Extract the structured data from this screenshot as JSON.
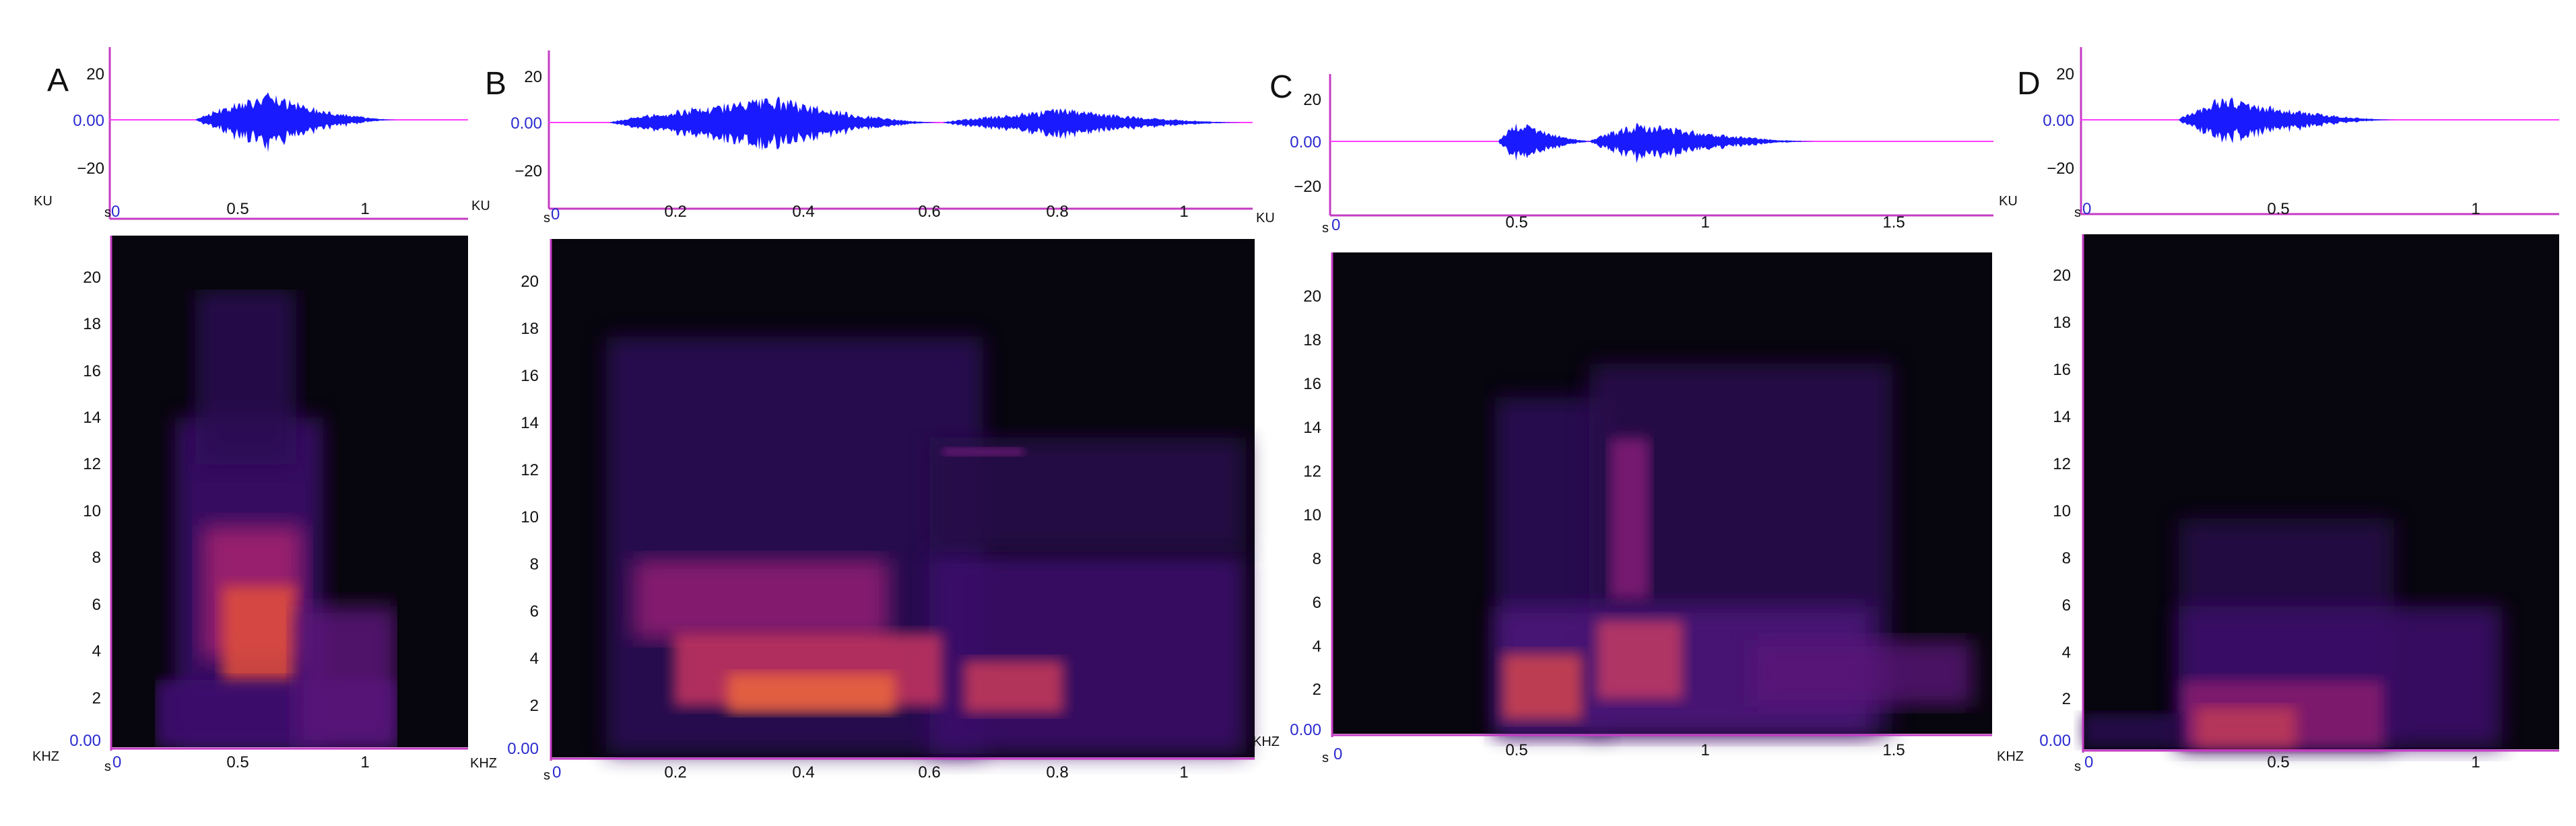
{
  "figure": {
    "panels": [
      {
        "label": "A",
        "waveform": {
          "y_unit": "KU",
          "y_ticks": [
            "20",
            "0.00",
            "−20"
          ],
          "x_unit": "s",
          "x_ticks": [
            "0",
            "0.5",
            "1"
          ]
        },
        "spectrogram": {
          "y_unit": "KHZ",
          "y_ticks": [
            "0.00",
            "2",
            "4",
            "6",
            "8",
            "10",
            "12",
            "14",
            "16",
            "18",
            "20"
          ],
          "x_unit": "s",
          "x_ticks": [
            "0",
            "0.5",
            "1"
          ]
        }
      },
      {
        "label": "B",
        "waveform": {
          "y_unit": "KU",
          "y_ticks": [
            "20",
            "0.00",
            "−20"
          ],
          "x_unit": "s",
          "x_ticks": [
            "0",
            "0.2",
            "0.4",
            "0.6",
            "0.8",
            "1"
          ]
        },
        "spectrogram": {
          "y_unit": "KHZ",
          "y_ticks": [
            "0.00",
            "2",
            "4",
            "6",
            "8",
            "10",
            "12",
            "14",
            "16",
            "18",
            "20"
          ],
          "x_unit": "s",
          "x_ticks": [
            "0",
            "0.2",
            "0.4",
            "0.6",
            "0.8",
            "1"
          ]
        }
      },
      {
        "label": "C",
        "waveform": {
          "y_unit": "KU",
          "y_ticks": [
            "20",
            "0.00",
            "−20"
          ],
          "x_unit": "s",
          "x_ticks": [
            "0",
            "0.5",
            "1",
            "1.5"
          ]
        },
        "spectrogram": {
          "y_unit": "KHZ",
          "y_ticks": [
            "0.00",
            "2",
            "4",
            "6",
            "8",
            "10",
            "12",
            "14",
            "16",
            "18",
            "20"
          ],
          "x_unit": "s",
          "x_ticks": [
            "0",
            "0.5",
            "1",
            "1.5"
          ]
        }
      },
      {
        "label": "D",
        "waveform": {
          "y_unit": "KU",
          "y_ticks": [
            "20",
            "0.00",
            "−20"
          ],
          "x_unit": "s",
          "x_ticks": [
            "0",
            "0.5",
            "1"
          ]
        },
        "spectrogram": {
          "y_unit": "KHZ",
          "y_ticks": [
            "0.00",
            "2",
            "4",
            "6",
            "8",
            "10",
            "12",
            "14",
            "16",
            "18",
            "20"
          ],
          "x_unit": "s",
          "x_ticks": [
            "0",
            "0.5",
            "1"
          ]
        }
      }
    ]
  },
  "colors": {
    "waveform": "#1a1aff",
    "baseline": "#ff3dff",
    "axis": "#c43bc4",
    "spectrogram_background": "#07050d"
  }
}
